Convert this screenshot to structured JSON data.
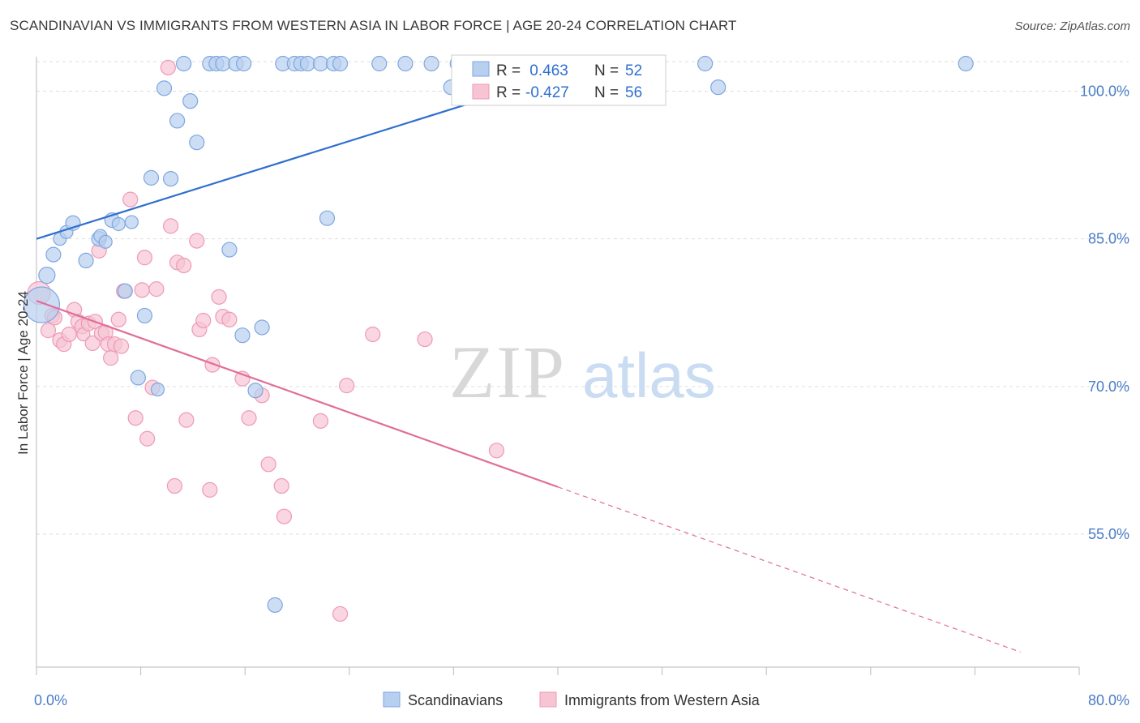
{
  "title": "SCANDINAVIAN VS IMMIGRANTS FROM WESTERN ASIA IN LABOR FORCE | AGE 20-24 CORRELATION CHART",
  "source": "Source: ZipAtlas.com",
  "watermark": {
    "zip": "ZIP",
    "atlas": "atlas"
  },
  "colors": {
    "blue_fill": "#b8d0f0",
    "blue_stroke": "#7ea6e0",
    "blue_line": "#2e6fce",
    "pink_fill": "#f7c4d4",
    "pink_stroke": "#ee9ab5",
    "pink_line": "#e06e98",
    "tick_text": "#4a7cc7",
    "grid": "#dddddd"
  },
  "legend": {
    "rows": [
      {
        "r_label": "R =",
        "r_value": " 0.463",
        "n_label": "N =",
        "n_value": "52",
        "series": "blue"
      },
      {
        "r_label": "R =",
        "r_value": "-0.427",
        "n_label": "N =",
        "n_value": "56",
        "series": "pink"
      }
    ]
  },
  "chart_data": {
    "type": "scatter",
    "xlabel": "",
    "ylabel": "In Labor Force | Age 20-24",
    "xlim": [
      0,
      80
    ],
    "ylim": [
      40,
      102
    ],
    "x_tick_labels": [
      {
        "x": 0,
        "label": "0.0%"
      },
      {
        "x": 80,
        "label": "80.0%"
      }
    ],
    "y_tick_labels": [
      {
        "y": 100,
        "label": "100.0%"
      },
      {
        "y": 85,
        "label": "85.0%"
      },
      {
        "y": 70,
        "label": "70.0%"
      },
      {
        "y": 55,
        "label": "55.0%"
      }
    ],
    "grid": "horizontal dashed",
    "legend_position": "top-center",
    "series": [
      {
        "name": "Scandinavians",
        "color": "blue",
        "trend": {
          "x0": 0,
          "y0": 83.5,
          "x1": 43.5,
          "y1": 101.5,
          "dashed_to": 43.5
        },
        "points": [
          [
            0.4,
            76.8,
            22
          ],
          [
            0.8,
            79.8,
            10
          ],
          [
            1.3,
            81.9,
            9
          ],
          [
            1.8,
            83.5,
            8
          ],
          [
            2.3,
            84.2,
            8
          ],
          [
            2.8,
            85.1,
            9
          ],
          [
            3.8,
            81.3,
            9
          ],
          [
            4.8,
            83.5,
            9
          ],
          [
            4.9,
            83.8,
            8
          ],
          [
            5.3,
            83.2,
            8
          ],
          [
            5.8,
            85.4,
            9
          ],
          [
            6.3,
            85.0,
            8
          ],
          [
            6.8,
            78.2,
            9
          ],
          [
            7.3,
            85.2,
            8
          ],
          [
            7.8,
            69.4,
            9
          ],
          [
            8.3,
            75.7,
            9
          ],
          [
            8.8,
            89.7,
            9
          ],
          [
            9.3,
            68.2,
            8
          ],
          [
            9.8,
            98.8,
            9
          ],
          [
            10.3,
            89.6,
            9
          ],
          [
            10.8,
            95.5,
            9
          ],
          [
            11.3,
            101.3,
            9
          ],
          [
            11.8,
            97.5,
            9
          ],
          [
            12.3,
            93.3,
            9
          ],
          [
            13.3,
            101.3,
            9
          ],
          [
            13.8,
            101.3,
            9
          ],
          [
            14.3,
            101.3,
            9
          ],
          [
            14.8,
            82.4,
            9
          ],
          [
            15.3,
            101.3,
            9
          ],
          [
            15.8,
            73.7,
            9
          ],
          [
            15.9,
            101.3,
            9
          ],
          [
            16.8,
            68.1,
            9
          ],
          [
            17.3,
            74.5,
            9
          ],
          [
            18.3,
            46.3,
            9
          ],
          [
            18.9,
            101.3,
            9
          ],
          [
            19.8,
            101.3,
            9
          ],
          [
            20.3,
            101.3,
            9
          ],
          [
            20.8,
            101.3,
            9
          ],
          [
            21.8,
            101.3,
            9
          ],
          [
            22.3,
            85.6,
            9
          ],
          [
            22.8,
            101.3,
            9
          ],
          [
            23.3,
            101.3,
            9
          ],
          [
            26.3,
            101.3,
            9
          ],
          [
            28.3,
            101.3,
            9
          ],
          [
            30.3,
            101.3,
            9
          ],
          [
            31.8,
            98.9,
            9
          ],
          [
            32.3,
            101.3,
            9
          ],
          [
            34.3,
            101.3,
            9
          ],
          [
            36.3,
            101.3,
            9
          ],
          [
            51.3,
            101.3,
            9
          ],
          [
            52.3,
            98.9,
            9
          ],
          [
            71.3,
            101.3,
            9
          ]
        ]
      },
      {
        "name": "Immigrants from Western Asia",
        "color": "pink",
        "trend": {
          "x0": 0,
          "y0": 77.2,
          "x1": 40,
          "y1": 58.3,
          "dashed_to": 75.5
        },
        "points": [
          [
            0.2,
            78.0,
            14
          ],
          [
            0.9,
            74.2,
            9
          ],
          [
            1.2,
            75.7,
            9
          ],
          [
            1.4,
            75.5,
            9
          ],
          [
            1.8,
            73.2,
            9
          ],
          [
            2.1,
            72.8,
            9
          ],
          [
            2.5,
            73.8,
            9
          ],
          [
            2.9,
            76.3,
            9
          ],
          [
            3.2,
            75.1,
            9
          ],
          [
            3.5,
            74.6,
            9
          ],
          [
            3.6,
            73.8,
            8
          ],
          [
            4.0,
            74.9,
            9
          ],
          [
            4.3,
            72.9,
            9
          ],
          [
            4.5,
            75.1,
            9
          ],
          [
            4.8,
            82.3,
            9
          ],
          [
            5.0,
            73.9,
            9
          ],
          [
            5.3,
            74.0,
            9
          ],
          [
            5.5,
            72.8,
            9
          ],
          [
            5.7,
            71.4,
            9
          ],
          [
            6.0,
            72.8,
            9
          ],
          [
            6.3,
            75.3,
            9
          ],
          [
            6.5,
            72.6,
            9
          ],
          [
            6.7,
            78.2,
            9
          ],
          [
            7.2,
            87.5,
            9
          ],
          [
            7.6,
            65.3,
            9
          ],
          [
            8.1,
            78.3,
            9
          ],
          [
            8.3,
            81.6,
            9
          ],
          [
            8.5,
            63.2,
            9
          ],
          [
            8.9,
            68.4,
            9
          ],
          [
            9.2,
            78.4,
            9
          ],
          [
            10.1,
            100.9,
            9
          ],
          [
            10.3,
            84.8,
            9
          ],
          [
            10.6,
            58.4,
            9
          ],
          [
            10.8,
            81.1,
            9
          ],
          [
            11.3,
            80.8,
            9
          ],
          [
            11.5,
            65.1,
            9
          ],
          [
            12.3,
            83.3,
            9
          ],
          [
            12.5,
            74.3,
            9
          ],
          [
            12.8,
            75.2,
            9
          ],
          [
            13.3,
            58.0,
            9
          ],
          [
            13.5,
            70.7,
            9
          ],
          [
            14.0,
            77.6,
            9
          ],
          [
            14.3,
            75.6,
            9
          ],
          [
            14.8,
            75.3,
            9
          ],
          [
            15.8,
            69.3,
            9
          ],
          [
            16.3,
            65.3,
            9
          ],
          [
            17.3,
            67.6,
            9
          ],
          [
            17.8,
            60.6,
            9
          ],
          [
            18.8,
            58.4,
            9
          ],
          [
            19.0,
            55.3,
            9
          ],
          [
            21.8,
            65.0,
            9
          ],
          [
            23.3,
            45.4,
            9
          ],
          [
            23.8,
            68.6,
            9
          ],
          [
            25.8,
            73.8,
            9
          ],
          [
            29.8,
            73.3,
            9
          ],
          [
            35.3,
            62.0,
            9
          ]
        ]
      }
    ]
  },
  "bottom_legend": [
    {
      "label": "Scandinavians",
      "series": "blue"
    },
    {
      "label": "Immigrants from Western Asia",
      "series": "pink"
    }
  ]
}
